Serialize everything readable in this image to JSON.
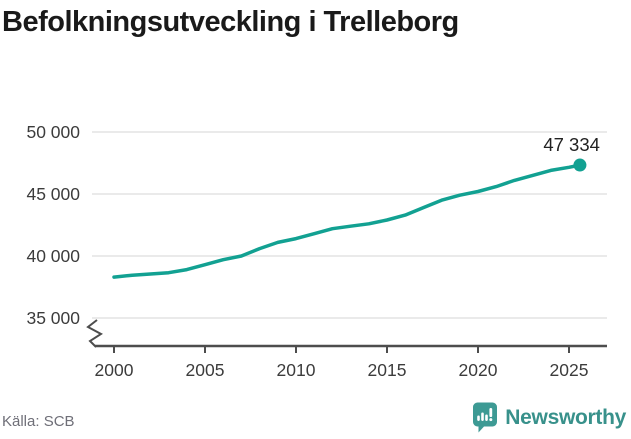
{
  "title": "Befolkningsutveckling i Trelleborg",
  "source": "Källa: SCB",
  "logo": {
    "text": "Newsworthy"
  },
  "colors": {
    "line": "#12a192",
    "grid": "#e3e3e3",
    "axis": "#4d4d4d",
    "tick_label": "#3c3c3c",
    "title": "#1a1a1a",
    "source_text": "#6f6f78",
    "logo_bubble": "#3d9a94",
    "logo_text": "#38918b",
    "end_label": "#222222"
  },
  "chart_data": {
    "type": "line",
    "title": "Befolkningsutveckling i Trelleborg",
    "source": "Källa: SCB",
    "grid": "horizontal",
    "legend": "none",
    "y_axis_break": true,
    "xlim": [
      1998.8,
      2027.3
    ],
    "ylim": [
      35000,
      50000
    ],
    "x_ticks": [
      2000,
      2005,
      2010,
      2015,
      2020,
      2025
    ],
    "y_ticks": [
      "50 000",
      "45 000",
      "40 000",
      "35 000"
    ],
    "y_tick_values": [
      50000,
      45000,
      40000,
      35000
    ],
    "end_label": "47 334",
    "end_value": 47334,
    "series": [
      {
        "name": "Befolkning",
        "x": [
          2000,
          2001,
          2002,
          2003,
          2004,
          2005,
          2006,
          2007,
          2008,
          2009,
          2010,
          2011,
          2012,
          2013,
          2014,
          2015,
          2016,
          2017,
          2018,
          2019,
          2020,
          2021,
          2022,
          2023,
          2024,
          2025,
          2025.6
        ],
        "values": [
          38300,
          38450,
          38550,
          38650,
          38900,
          39300,
          39700,
          40000,
          40600,
          41100,
          41400,
          41800,
          42200,
          42400,
          42600,
          42900,
          43300,
          43900,
          44500,
          44900,
          45200,
          45600,
          46100,
          46500,
          46900,
          47150,
          47334
        ]
      }
    ]
  }
}
